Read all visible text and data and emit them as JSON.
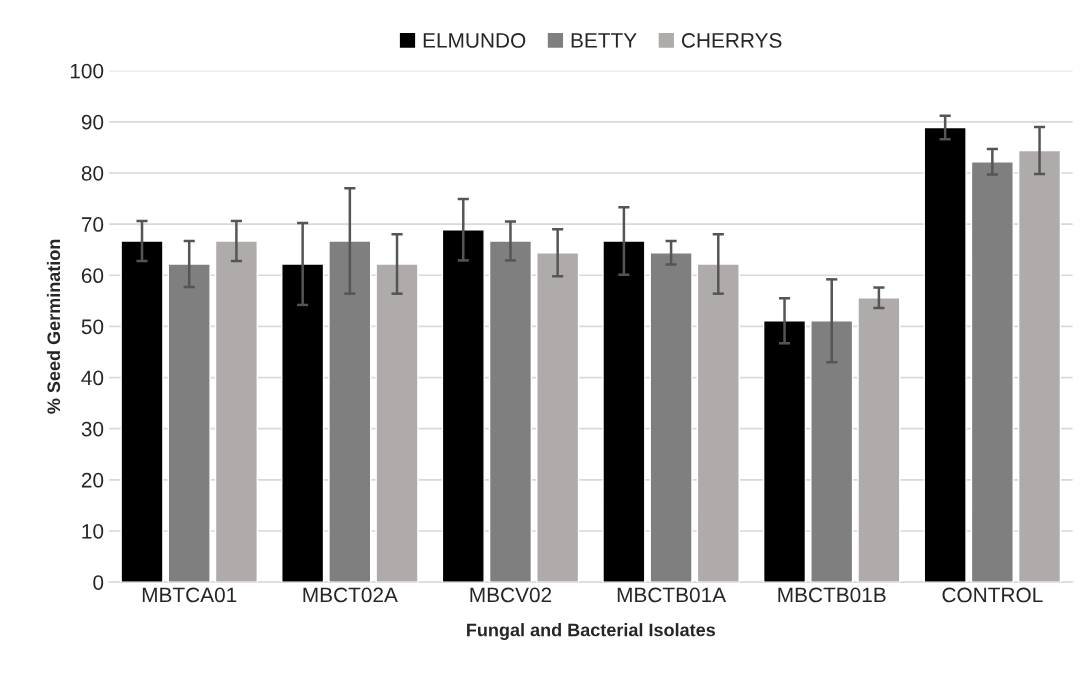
{
  "chart_data": {
    "type": "bar",
    "xlabel": "Fungal and Bacterial Isolates",
    "ylabel": "% Seed Germination",
    "categories": [
      "MBTCA01",
      "MBCT02A",
      "MBCV02",
      "MBCTB01A",
      "MBCTB01B",
      "CONTROL"
    ],
    "series": [
      {
        "name": "ELMUNDO",
        "color": "#000000",
        "values": [
          66.7,
          62.2,
          68.9,
          66.7,
          51.1,
          88.9
        ],
        "errors": [
          3.9,
          8,
          6,
          6.6,
          4.4,
          2.3
        ]
      },
      {
        "name": "BETTY",
        "color": "#7f7f7f",
        "values": [
          62.2,
          66.7,
          66.7,
          64.4,
          51.1,
          82.2
        ],
        "errors": [
          4.5,
          10.3,
          3.8,
          2.3,
          8.1,
          2.5
        ]
      },
      {
        "name": "CHERRYS",
        "color": "#afabab",
        "values": [
          66.7,
          62.2,
          64.4,
          62.2,
          55.6,
          84.4
        ],
        "errors": [
          3.9,
          5.8,
          4.6,
          5.8,
          2,
          4.6
        ]
      }
    ],
    "ylim": [
      0,
      100
    ],
    "yticks": [
      0,
      10,
      20,
      30,
      40,
      50,
      60,
      70,
      80,
      90,
      100
    ],
    "grid": "y",
    "legend": "top"
  }
}
